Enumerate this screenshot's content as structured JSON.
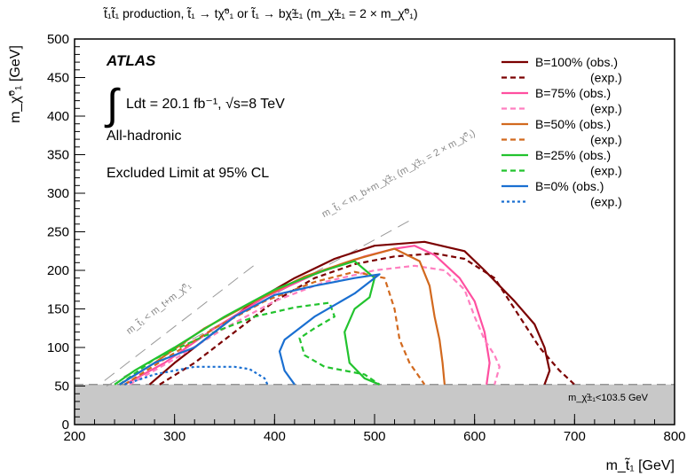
{
  "chart_data": {
    "type": "line",
    "title": "t̃₁t̃₁ production, t̃₁ → tχ̃⁰₁ or t̃₁ → bχ̃±₁ (m_χ̃±₁ = 2 × m_χ̃⁰₁)",
    "xlabel": "m_t̃₁ [GeV]",
    "ylabel": "m_χ̃⁰₁ [GeV]",
    "xlim": [
      200,
      800
    ],
    "ylim": [
      0,
      500
    ],
    "xticks": [
      200,
      300,
      400,
      500,
      600,
      700,
      800
    ],
    "yticks": [
      0,
      50,
      100,
      150,
      200,
      250,
      300,
      350,
      400,
      450,
      500
    ],
    "grid": false,
    "legend_position": "top-right",
    "experiment": "ATLAS",
    "luminosity_text": "Ldt = 20.1 fb⁻¹, √s=8 TeV",
    "channel": "All-hadronic",
    "cl_text": "Excluded Limit at 95% CL",
    "excluded_band": {
      "ymax": 52,
      "label": "m_χ̃±₁<103.5 GeV",
      "color": "#c8c8c8"
    },
    "diag_lines": [
      {
        "label": "m_t̃₁ < m_t+m_χ̃⁰₁",
        "x": [
          230,
          380
        ],
        "y": [
          57,
          207
        ]
      },
      {
        "label": "m_t̃₁ < m_b+m_χ̃±₁ (m_χ̃±₁ = 2 × m_χ̃⁰₁)",
        "x": [
          232,
          540
        ],
        "y": [
          50,
          268
        ]
      }
    ],
    "series": [
      {
        "name": "B=100% (obs.)",
        "color": "#7b0000",
        "dash": "solid",
        "x": [
          275,
          300,
          340,
          380,
          420,
          460,
          500,
          550,
          590,
          610,
          640,
          660,
          670,
          675,
          670
        ],
        "y": [
          52,
          80,
          120,
          160,
          190,
          215,
          232,
          237,
          225,
          200,
          160,
          130,
          100,
          70,
          52
        ]
      },
      {
        "name": "B=100% (exp.)",
        "color": "#7b0000",
        "dash": "dashed",
        "x": [
          285,
          320,
          360,
          400,
          440,
          480,
          520,
          560,
          590,
          620,
          635,
          650,
          665,
          685,
          700
        ],
        "y": [
          52,
          80,
          120,
          160,
          190,
          208,
          218,
          222,
          215,
          190,
          160,
          130,
          100,
          70,
          52
        ]
      },
      {
        "name": "B=75% (obs.)",
        "color": "#ff4fa0",
        "dash": "solid",
        "x": [
          250,
          290,
          340,
          390,
          440,
          490,
          520,
          540,
          560,
          585,
          600,
          610,
          615,
          612
        ],
        "y": [
          52,
          80,
          125,
          165,
          195,
          218,
          228,
          232,
          220,
          190,
          160,
          120,
          80,
          52
        ]
      },
      {
        "name": "B=75% (exp.)",
        "color": "#ff7fc0",
        "dash": "dashed",
        "x": [
          255,
          300,
          350,
          400,
          450,
          500,
          540,
          570,
          590,
          600,
          610,
          620,
          625,
          620
        ],
        "y": [
          52,
          85,
          125,
          160,
          185,
          200,
          206,
          200,
          175,
          140,
          110,
          90,
          75,
          52
        ]
      },
      {
        "name": "B=50% (obs.)",
        "color": "#d2691e",
        "dash": "solid",
        "x": [
          245,
          280,
          330,
          380,
          430,
          480,
          520,
          545,
          555,
          560,
          565,
          568,
          570
        ],
        "y": [
          52,
          80,
          125,
          160,
          192,
          214,
          228,
          212,
          180,
          140,
          110,
          80,
          52
        ]
      },
      {
        "name": "B=50% (exp.)",
        "color": "#d2691e",
        "dash": "dashed",
        "x": [
          250,
          290,
          340,
          390,
          440,
          480,
          510,
          520,
          525,
          535,
          550
        ],
        "y": [
          52,
          85,
          125,
          160,
          185,
          198,
          190,
          150,
          110,
          80,
          52
        ]
      },
      {
        "name": "B=25% (obs.)",
        "color": "#22c32e",
        "dash": "solid",
        "x": [
          240,
          260,
          300,
          350,
          400,
          450,
          480,
          500,
          495,
          480,
          470,
          475,
          490,
          505
        ],
        "y": [
          52,
          70,
          100,
          140,
          175,
          200,
          212,
          190,
          165,
          150,
          120,
          80,
          60,
          52
        ]
      },
      {
        "name": "B=25% (exp.)",
        "color": "#22c32e",
        "dash": "dashed",
        "x": [
          245,
          280,
          330,
          380,
          420,
          455,
          460,
          440,
          425,
          430,
          450,
          470,
          490,
          505
        ],
        "y": [
          52,
          85,
          115,
          140,
          152,
          158,
          140,
          125,
          112,
          90,
          75,
          70,
          65,
          52
        ]
      },
      {
        "name": "B=0% (obs.)",
        "color": "#1a6fd1",
        "dash": "solid",
        "x": [
          245,
          280,
          320,
          360,
          400,
          440,
          480,
          505,
          480,
          440,
          410,
          405,
          410,
          420
        ],
        "y": [
          52,
          80,
          100,
          140,
          168,
          180,
          190,
          195,
          170,
          140,
          110,
          95,
          70,
          52
        ]
      },
      {
        "name": "B=0% (exp.)",
        "color": "#1a6fd1",
        "dash": "dotted",
        "x": [
          250,
          280,
          320,
          360,
          375,
          380,
          390,
          393
        ],
        "y": [
          52,
          65,
          75,
          75,
          72,
          68,
          60,
          52
        ]
      }
    ]
  },
  "legend": [
    {
      "label": "B=100% (obs.)",
      "color": "#7b0000",
      "dash": "solid"
    },
    {
      "label": "(exp.)",
      "color": "#7b0000",
      "dash": "dashed"
    },
    {
      "label": "B=75% (obs.)",
      "color": "#ff4fa0",
      "dash": "solid"
    },
    {
      "label": "(exp.)",
      "color": "#ff7fc0",
      "dash": "dashed"
    },
    {
      "label": "B=50% (obs.)",
      "color": "#d2691e",
      "dash": "solid"
    },
    {
      "label": "(exp.)",
      "color": "#d2691e",
      "dash": "dashed"
    },
    {
      "label": "B=25% (obs.)",
      "color": "#22c32e",
      "dash": "solid"
    },
    {
      "label": "(exp.)",
      "color": "#22c32e",
      "dash": "dashed"
    },
    {
      "label": "B=0%  (obs.)",
      "color": "#1a6fd1",
      "dash": "solid"
    },
    {
      "label": "(exp.)",
      "color": "#1a6fd1",
      "dash": "dotted"
    }
  ]
}
